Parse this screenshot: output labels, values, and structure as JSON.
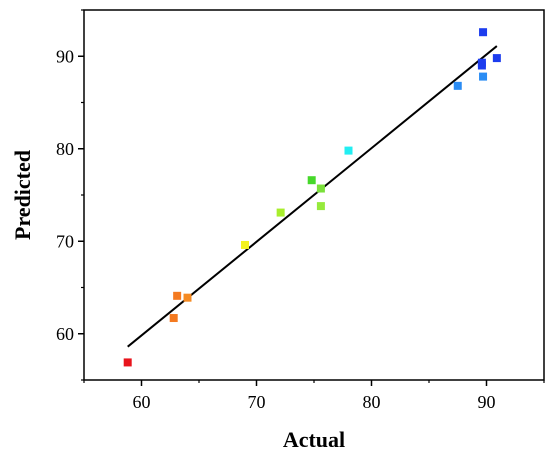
{
  "chart_data": {
    "type": "scatter",
    "title": "",
    "xlabel": "Actual",
    "ylabel": "Predicted",
    "xlim": [
      55,
      95
    ],
    "ylim": [
      55,
      95
    ],
    "x_ticks": [
      60,
      70,
      80,
      90
    ],
    "y_ticks": [
      60,
      70,
      80,
      90
    ],
    "grid": false,
    "legend": "none",
    "marker": "square",
    "series": [
      {
        "points": [
          {
            "x": 58.8,
            "y": 56.9,
            "color": "#e8141c"
          },
          {
            "x": 62.8,
            "y": 61.7,
            "color": "#f47a20"
          },
          {
            "x": 63.1,
            "y": 64.1,
            "color": "#f47a20"
          },
          {
            "x": 64.0,
            "y": 63.9,
            "color": "#f58a22"
          },
          {
            "x": 69.0,
            "y": 69.6,
            "color": "#f4f21c"
          },
          {
            "x": 72.1,
            "y": 73.1,
            "color": "#a8ee2c"
          },
          {
            "x": 74.8,
            "y": 76.6,
            "color": "#46d82a"
          },
          {
            "x": 75.6,
            "y": 75.7,
            "color": "#7ae03a"
          },
          {
            "x": 75.6,
            "y": 73.8,
            "color": "#96ea3c"
          },
          {
            "x": 78.0,
            "y": 79.8,
            "color": "#22eef2"
          },
          {
            "x": 87.5,
            "y": 86.8,
            "color": "#2a8cf4"
          },
          {
            "x": 89.7,
            "y": 87.8,
            "color": "#2a8cf4"
          },
          {
            "x": 89.6,
            "y": 89.0,
            "color": "#1c3cee"
          },
          {
            "x": 89.6,
            "y": 89.3,
            "color": "#1c3cee"
          },
          {
            "x": 89.7,
            "y": 92.6,
            "color": "#1c3cee"
          },
          {
            "x": 90.9,
            "y": 89.8,
            "color": "#1c3cee"
          }
        ]
      }
    ],
    "fit_line": {
      "x": [
        58.8,
        90.9
      ],
      "y": [
        58.6,
        91.1
      ],
      "color": "#000000"
    }
  }
}
